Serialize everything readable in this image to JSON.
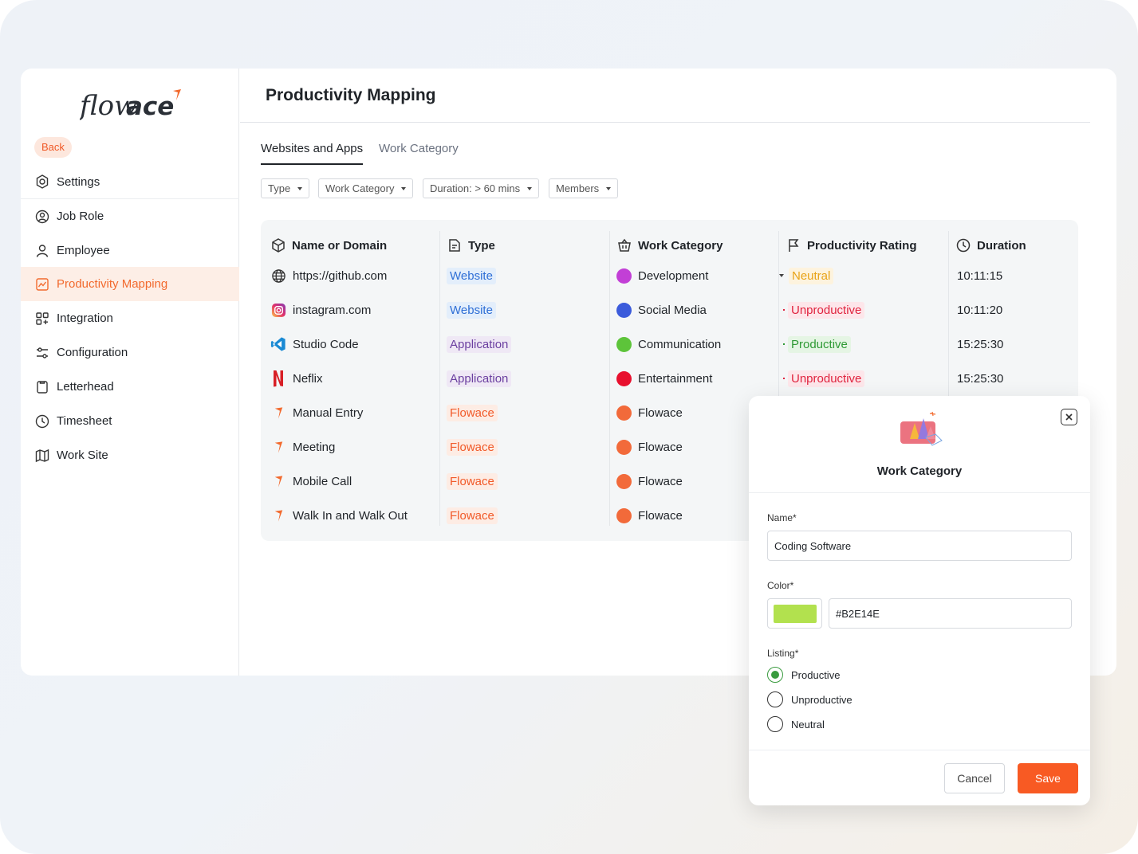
{
  "brand": {
    "logo_text": "flowace",
    "accent": "#F26A2E"
  },
  "sidebar": {
    "back_label": "Back",
    "items": [
      {
        "label": "Settings",
        "icon": "settings-icon",
        "active": false
      },
      {
        "label": "Job Role",
        "icon": "job-role-icon",
        "active": false
      },
      {
        "label": "Employee",
        "icon": "employee-icon",
        "active": false
      },
      {
        "label": "Productivity Mapping",
        "icon": "productivity-mapping-icon",
        "active": true
      },
      {
        "label": "Integration",
        "icon": "integration-icon",
        "active": false
      },
      {
        "label": "Configuration",
        "icon": "configuration-icon",
        "active": false
      },
      {
        "label": "Letterhead",
        "icon": "letterhead-icon",
        "active": false
      },
      {
        "label": "Timesheet",
        "icon": "timesheet-icon",
        "active": false
      },
      {
        "label": "Work Site",
        "icon": "work-site-icon",
        "active": false
      }
    ]
  },
  "header": {
    "title": "Productivity Mapping"
  },
  "tabs": [
    {
      "label": "Websites and Apps",
      "active": true
    },
    {
      "label": "Work Category",
      "active": false
    }
  ],
  "filters": [
    "Type",
    "Work Category",
    "Duration: > 60 mins",
    "Members"
  ],
  "table": {
    "columns": [
      "Name or Domain",
      "Type",
      "Work Category",
      "Productivity Rating",
      "Duration"
    ],
    "rows": [
      {
        "name": "https://github.com",
        "icon": "globe-icon",
        "type": "Website",
        "type_kind": "website",
        "category": "Development",
        "category_color": "#C23FD6",
        "rating": "Neutral",
        "rating_kind": "neutral",
        "duration": "10:11:15"
      },
      {
        "name": "instagram.com",
        "icon": "instagram-icon",
        "type": "Website",
        "type_kind": "website",
        "category": "Social Media",
        "category_color": "#3B5BDB",
        "rating": "Unproductive",
        "rating_kind": "unproductive",
        "duration": "10:11:20"
      },
      {
        "name": "Studio Code",
        "icon": "vscode-icon",
        "type": "Application",
        "type_kind": "application",
        "category": "Communication",
        "category_color": "#5DC43A",
        "rating": "Productive",
        "rating_kind": "productive",
        "duration": "15:25:30"
      },
      {
        "name": "Neflix",
        "icon": "netflix-icon",
        "type": "Application",
        "type_kind": "application",
        "category": "Entertainment",
        "category_color": "#E8102E",
        "rating": "Unproductive",
        "rating_kind": "unproductive",
        "duration": "15:25:30"
      },
      {
        "name": "Manual Entry",
        "icon": "flowace-icon",
        "type": "Flowace",
        "type_kind": "flowace",
        "category": "Flowace",
        "category_color": "#F26A3A",
        "rating": "",
        "rating_kind": "",
        "duration": ""
      },
      {
        "name": "Meeting",
        "icon": "flowace-icon",
        "type": "Flowace",
        "type_kind": "flowace",
        "category": "Flowace",
        "category_color": "#F26A3A",
        "rating": "",
        "rating_kind": "",
        "duration": ""
      },
      {
        "name": "Mobile Call",
        "icon": "flowace-icon",
        "type": "Flowace",
        "type_kind": "flowace",
        "category": "Flowace",
        "category_color": "#F26A3A",
        "rating": "",
        "rating_kind": "",
        "duration": ""
      },
      {
        "name": "Walk In and Walk Out",
        "icon": "flowace-icon",
        "type": "Flowace",
        "type_kind": "flowace",
        "category": "Flowace",
        "category_color": "#F26A3A",
        "rating": "",
        "rating_kind": "",
        "duration": ""
      }
    ]
  },
  "modal": {
    "title": "Work Category",
    "name_label": "Name*",
    "name_value": "Coding Software",
    "color_label": "Color*",
    "color_value": "#B2E14E",
    "listing_label": "Listing*",
    "listing_options": [
      "Productive",
      "Unproductive",
      "Neutral"
    ],
    "listing_selected": "Productive",
    "cancel_label": "Cancel",
    "save_label": "Save"
  }
}
